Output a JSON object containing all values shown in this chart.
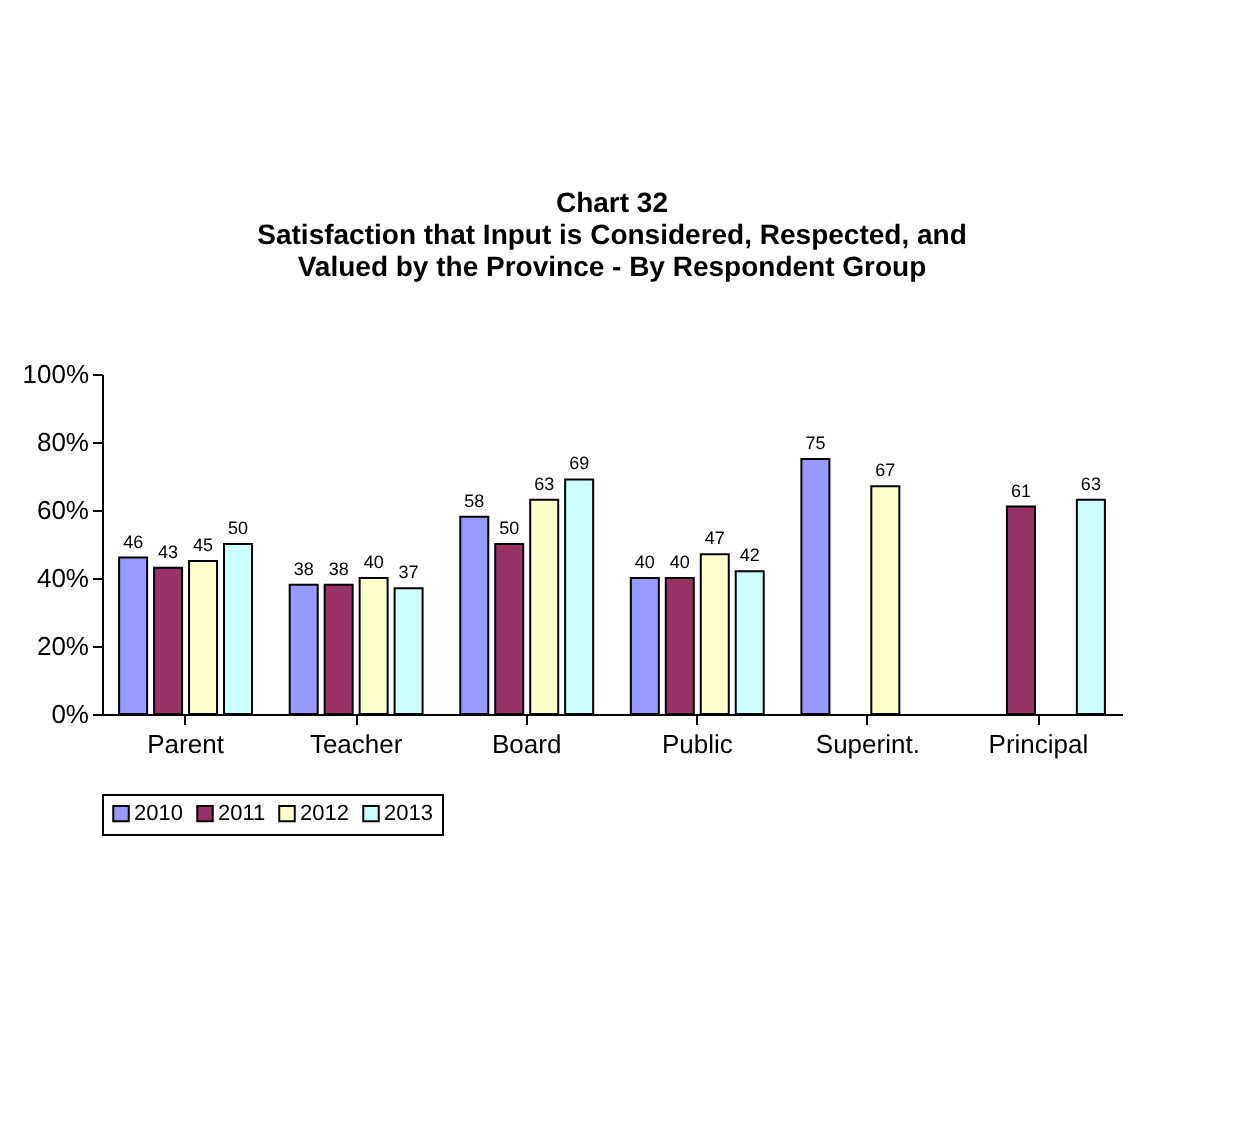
{
  "chart_data": {
    "type": "bar",
    "title": "Chart 32",
    "subtitle": "Satisfaction that Input is Considered, Respected, and Valued by the Province - By Respondent Group",
    "categories": [
      "Parent",
      "Teacher",
      "Board",
      "Public",
      "Superint.",
      "Principal"
    ],
    "series": [
      {
        "name": "2010",
        "color": "#9999ff",
        "values": [
          46,
          38,
          58,
          40,
          75,
          null
        ]
      },
      {
        "name": "2011",
        "color": "#993366",
        "values": [
          43,
          38,
          50,
          40,
          null,
          61
        ]
      },
      {
        "name": "2012",
        "color": "#ffffcc",
        "values": [
          45,
          40,
          63,
          47,
          67,
          null
        ]
      },
      {
        "name": "2013",
        "color": "#ccffff",
        "values": [
          50,
          37,
          69,
          42,
          null,
          63
        ]
      }
    ],
    "ylim": [
      0,
      100
    ],
    "yticks": [
      {
        "value": 0,
        "label": "0%"
      },
      {
        "value": 20,
        "label": "20%"
      },
      {
        "value": 40,
        "label": "40%"
      },
      {
        "value": 60,
        "label": "60%"
      },
      {
        "value": 80,
        "label": "80%"
      },
      {
        "value": 100,
        "label": "100%"
      }
    ],
    "data_labels": true,
    "grid": false,
    "legend": "bottom"
  }
}
